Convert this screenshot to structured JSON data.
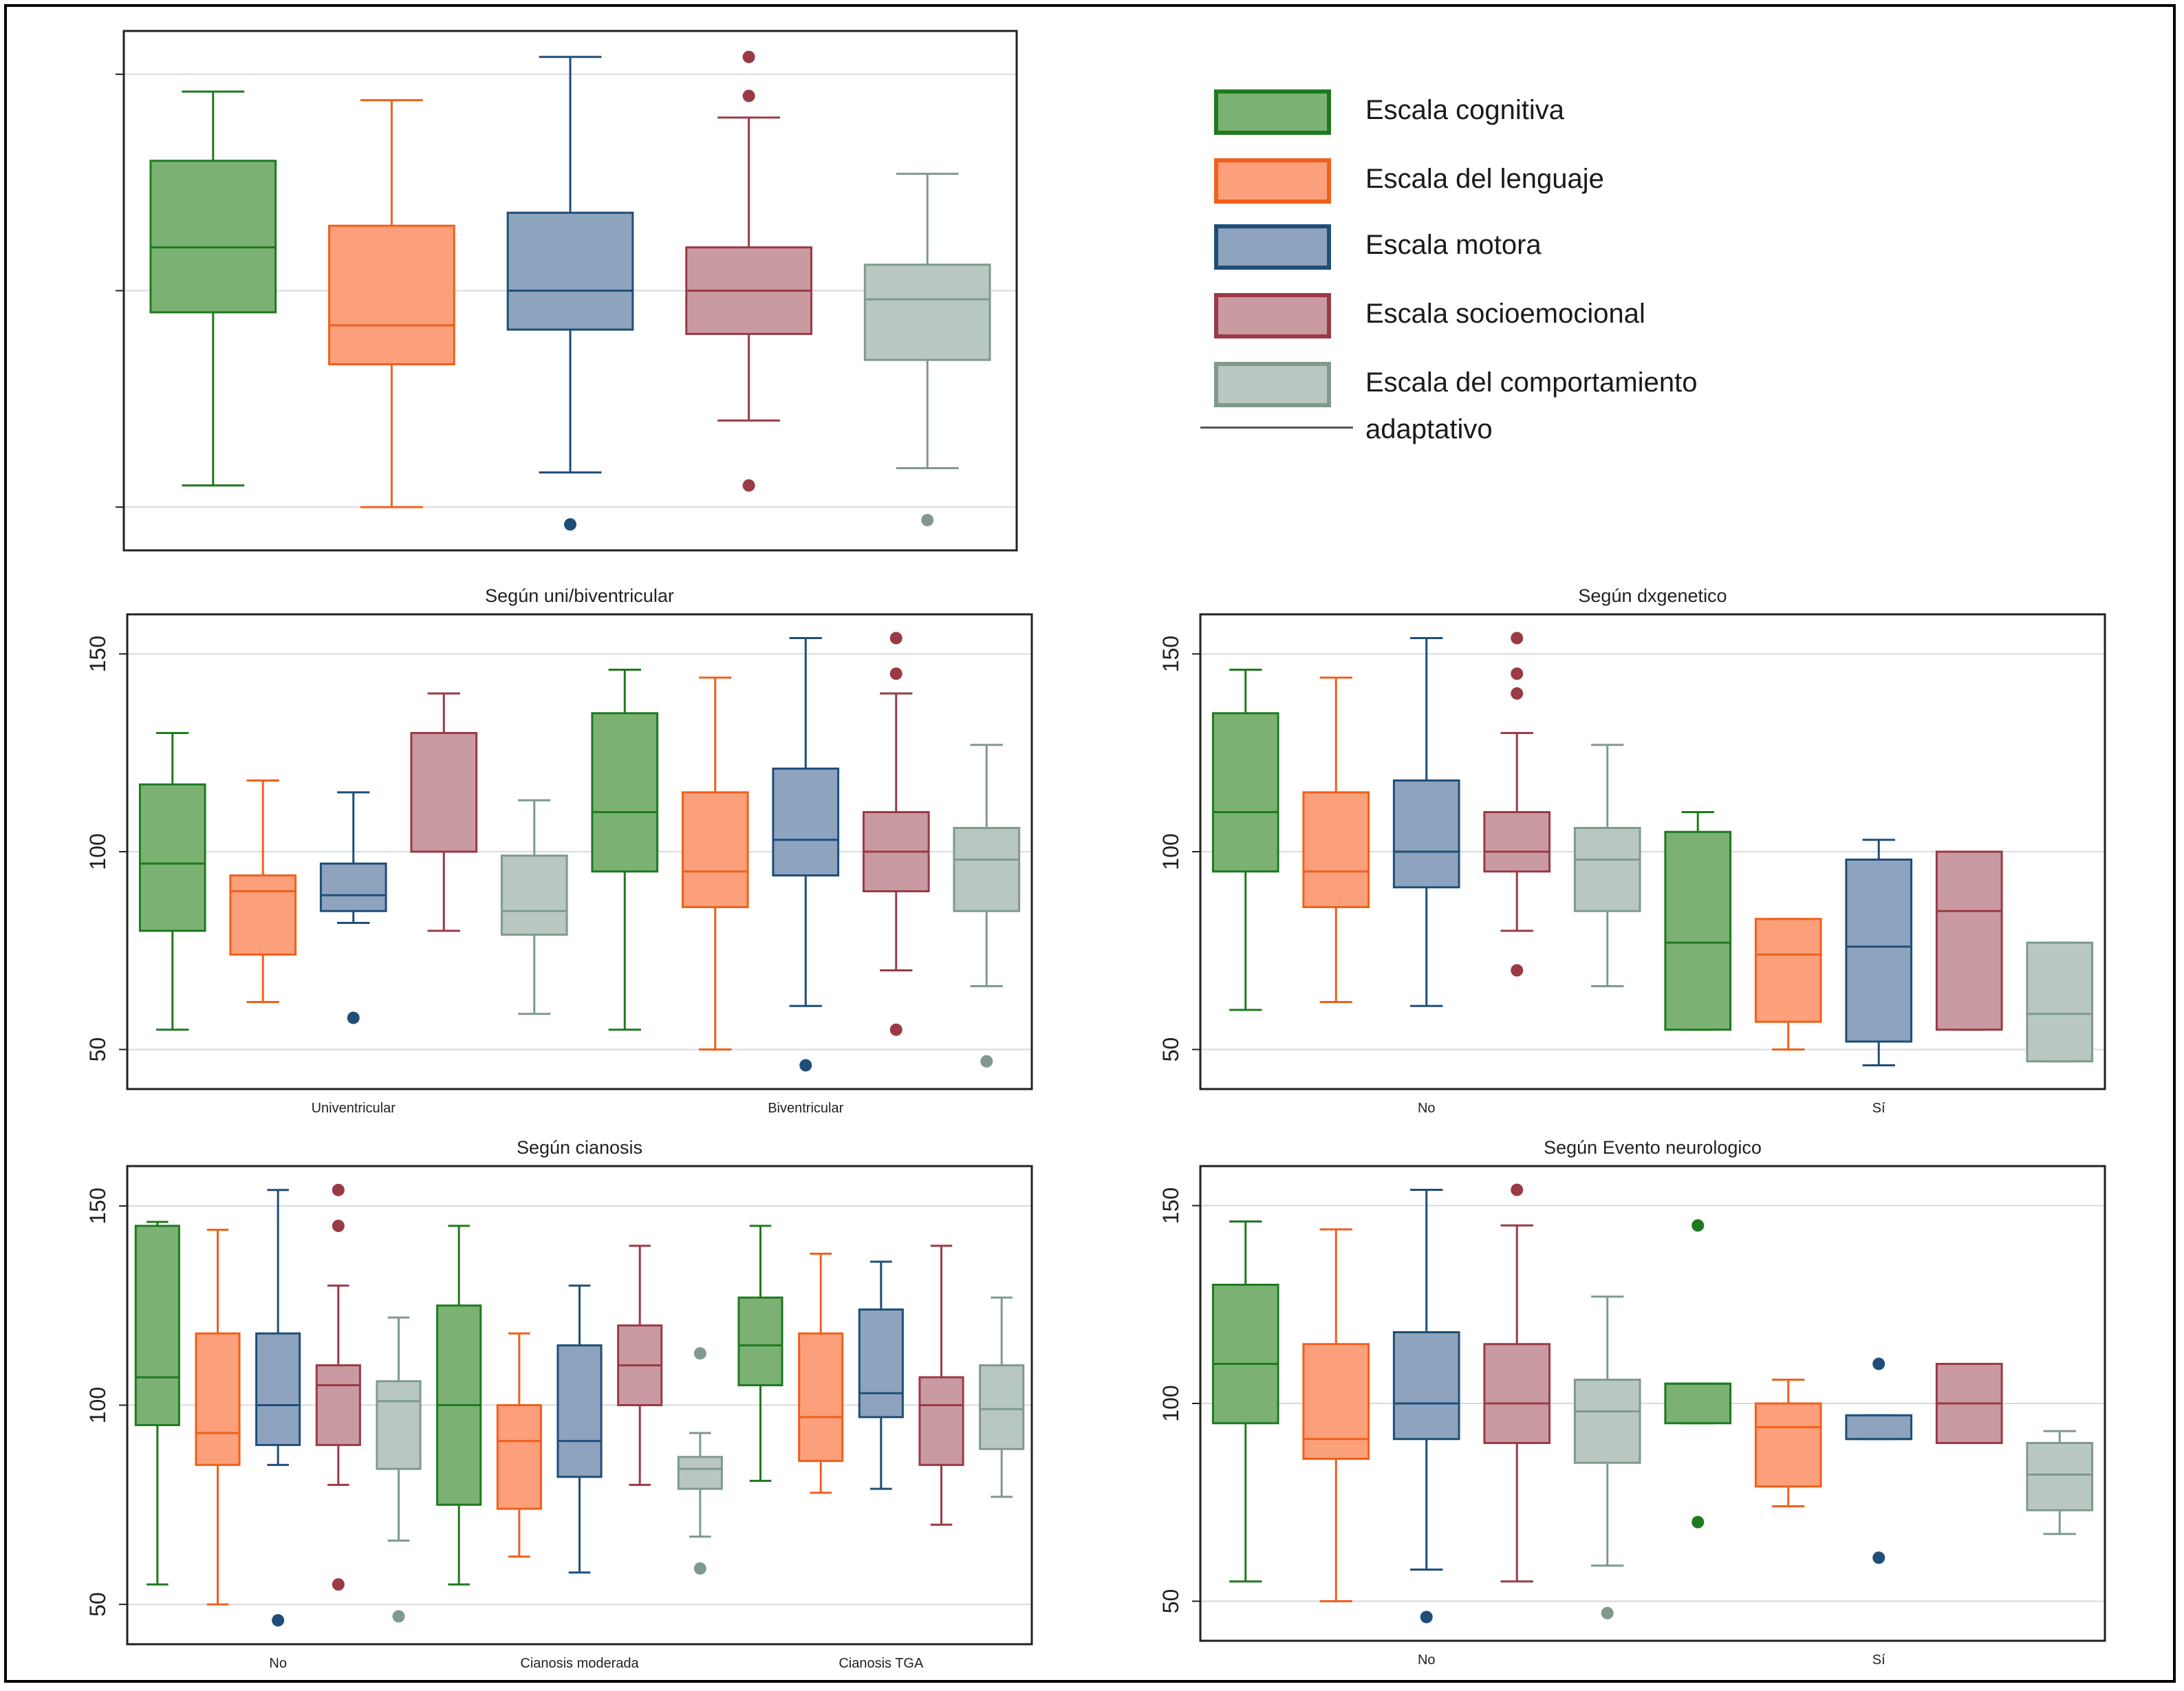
{
  "colors": {
    "cognitiva": {
      "fill": "#7bb274",
      "stroke": "#1f7a1f"
    },
    "lenguaje": {
      "fill": "#fba07a",
      "stroke": "#f0601c"
    },
    "motora": {
      "fill": "#8ea3bd",
      "stroke": "#1f4e79"
    },
    "socioemocional": {
      "fill": "#c99aa1",
      "stroke": "#9a3a46"
    },
    "comportamiento": {
      "fill": "#b8c8c0",
      "stroke": "#7f9a8c"
    }
  },
  "legend": {
    "items": [
      {
        "key": "cognitiva",
        "label": "Escala cognitiva"
      },
      {
        "key": "lenguaje",
        "label": "Escala del lenguaje"
      },
      {
        "key": "motora",
        "label": "Escala motora"
      },
      {
        "key": "socioemocional",
        "label": "Escala socioemocional"
      },
      {
        "key": "comportamiento",
        "label": "Escala del comportamiento"
      }
    ],
    "continuation": "adaptativo"
  },
  "chart_data": [
    {
      "id": "overall",
      "type": "boxplot",
      "title": "",
      "ylim": [
        40,
        160
      ],
      "yticks": [
        50,
        100,
        150
      ],
      "grid": true,
      "groups": [
        {
          "label": "",
          "boxes": [
            {
              "series": "cognitiva",
              "min": 55,
              "q1": 95,
              "median": 110,
              "q3": 130,
              "max": 146,
              "outliers": []
            },
            {
              "series": "lenguaje",
              "min": 50,
              "q1": 83,
              "median": 92,
              "q3": 115,
              "max": 144,
              "outliers": []
            },
            {
              "series": "motora",
              "min": 58,
              "q1": 91,
              "median": 100,
              "q3": 118,
              "max": 154,
              "outliers": [
                46
              ]
            },
            {
              "series": "socioemocional",
              "min": 70,
              "q1": 90,
              "median": 100,
              "q3": 110,
              "max": 140,
              "outliers": [
                55,
                145,
                154
              ]
            },
            {
              "series": "comportamiento",
              "min": 59,
              "q1": 84,
              "median": 98,
              "q3": 106,
              "max": 127,
              "outliers": [
                47
              ]
            }
          ]
        }
      ]
    },
    {
      "id": "uni-bi",
      "type": "boxplot",
      "title": "Según uni/biventricular",
      "ylim": [
        40,
        160
      ],
      "yticks": [
        50,
        100,
        150
      ],
      "grid": true,
      "groups": [
        {
          "label": "Univentricular",
          "boxes": [
            {
              "series": "cognitiva",
              "min": 55,
              "q1": 80,
              "median": 97,
              "q3": 117,
              "max": 130,
              "outliers": []
            },
            {
              "series": "lenguaje",
              "min": 62,
              "q1": 74,
              "median": 90,
              "q3": 94,
              "max": 118,
              "outliers": []
            },
            {
              "series": "motora",
              "min": 82,
              "q1": 85,
              "median": 89,
              "q3": 97,
              "max": 115,
              "outliers": [
                58
              ]
            },
            {
              "series": "socioemocional",
              "min": 80,
              "q1": 100,
              "median": 100,
              "q3": 130,
              "max": 140,
              "outliers": []
            },
            {
              "series": "comportamiento",
              "min": 59,
              "q1": 79,
              "median": 85,
              "q3": 99,
              "max": 113,
              "outliers": []
            }
          ]
        },
        {
          "label": "Biventricular",
          "boxes": [
            {
              "series": "cognitiva",
              "min": 55,
              "q1": 95,
              "median": 110,
              "q3": 135,
              "max": 146,
              "outliers": []
            },
            {
              "series": "lenguaje",
              "min": 50,
              "q1": 86,
              "median": 95,
              "q3": 115,
              "max": 144,
              "outliers": []
            },
            {
              "series": "motora",
              "min": 61,
              "q1": 94,
              "median": 103,
              "q3": 121,
              "max": 154,
              "outliers": [
                46
              ]
            },
            {
              "series": "socioemocional",
              "min": 70,
              "q1": 90,
              "median": 100,
              "q3": 110,
              "max": 140,
              "outliers": [
                55,
                145,
                154
              ]
            },
            {
              "series": "comportamiento",
              "min": 66,
              "q1": 85,
              "median": 98,
              "q3": 106,
              "max": 127,
              "outliers": [
                47
              ]
            }
          ]
        }
      ]
    },
    {
      "id": "dxgenetico",
      "type": "boxplot",
      "title": "Según dxgenetico",
      "ylim": [
        40,
        160
      ],
      "yticks": [
        50,
        100,
        150
      ],
      "grid": true,
      "groups": [
        {
          "label": "No",
          "boxes": [
            {
              "series": "cognitiva",
              "min": 60,
              "q1": 95,
              "median": 110,
              "q3": 135,
              "max": 146,
              "outliers": []
            },
            {
              "series": "lenguaje",
              "min": 62,
              "q1": 86,
              "median": 95,
              "q3": 115,
              "max": 144,
              "outliers": []
            },
            {
              "series": "motora",
              "min": 61,
              "q1": 91,
              "median": 100,
              "q3": 118,
              "max": 154,
              "outliers": []
            },
            {
              "series": "socioemocional",
              "min": 80,
              "q1": 95,
              "median": 100,
              "q3": 110,
              "max": 130,
              "outliers": [
                70,
                140,
                145,
                154
              ]
            },
            {
              "series": "comportamiento",
              "min": 66,
              "q1": 85,
              "median": 98,
              "q3": 106,
              "max": 127,
              "outliers": []
            }
          ]
        },
        {
          "label": "Sí",
          "boxes": [
            {
              "series": "cognitiva",
              "min": 55,
              "q1": 55,
              "median": 77,
              "q3": 105,
              "max": 110,
              "outliers": []
            },
            {
              "series": "lenguaje",
              "min": 50,
              "q1": 57,
              "median": 74,
              "q3": 83,
              "max": 83,
              "outliers": []
            },
            {
              "series": "motora",
              "min": 46,
              "q1": 52,
              "median": 76,
              "q3": 98,
              "max": 103,
              "outliers": []
            },
            {
              "series": "socioemocional",
              "min": 55,
              "q1": 55,
              "median": 85,
              "q3": 100,
              "max": 100,
              "outliers": []
            },
            {
              "series": "comportamiento",
              "min": 47,
              "q1": 47,
              "median": 59,
              "q3": 77,
              "max": 77,
              "outliers": []
            }
          ]
        }
      ]
    },
    {
      "id": "cianosis",
      "type": "boxplot",
      "title": "Según cianosis",
      "ylim": [
        40,
        160
      ],
      "yticks": [
        50,
        100,
        150
      ],
      "grid": true,
      "groups": [
        {
          "label": "No",
          "boxes": [
            {
              "series": "cognitiva",
              "min": 55,
              "q1": 95,
              "median": 107,
              "q3": 145,
              "max": 146,
              "outliers": []
            },
            {
              "series": "lenguaje",
              "min": 50,
              "q1": 85,
              "median": 93,
              "q3": 118,
              "max": 144,
              "outliers": []
            },
            {
              "series": "motora",
              "min": 85,
              "q1": 90,
              "median": 100,
              "q3": 118,
              "max": 154,
              "outliers": [
                46
              ]
            },
            {
              "series": "socioemocional",
              "min": 80,
              "q1": 90,
              "median": 105,
              "q3": 110,
              "max": 130,
              "outliers": [
                55,
                145,
                154
              ]
            },
            {
              "series": "comportamiento",
              "min": 66,
              "q1": 84,
              "median": 101,
              "q3": 106,
              "max": 122,
              "outliers": [
                47
              ]
            }
          ]
        },
        {
          "label": "Cianosis moderada",
          "boxes": [
            {
              "series": "cognitiva",
              "min": 55,
              "q1": 75,
              "median": 100,
              "q3": 125,
              "max": 145,
              "outliers": []
            },
            {
              "series": "lenguaje",
              "min": 62,
              "q1": 74,
              "median": 91,
              "q3": 100,
              "max": 118,
              "outliers": []
            },
            {
              "series": "motora",
              "min": 58,
              "q1": 82,
              "median": 91,
              "q3": 115,
              "max": 130,
              "outliers": []
            },
            {
              "series": "socioemocional",
              "min": 80,
              "q1": 100,
              "median": 110,
              "q3": 120,
              "max": 140,
              "outliers": []
            },
            {
              "series": "comportamiento",
              "min": 67,
              "q1": 79,
              "median": 84,
              "q3": 87,
              "max": 93,
              "outliers": [
                59,
                113
              ]
            }
          ]
        },
        {
          "label": "Cianosis TGA",
          "boxes": [
            {
              "series": "cognitiva",
              "min": 81,
              "q1": 105,
              "median": 115,
              "q3": 127,
              "max": 145,
              "outliers": []
            },
            {
              "series": "lenguaje",
              "min": 78,
              "q1": 86,
              "median": 97,
              "q3": 118,
              "max": 138,
              "outliers": []
            },
            {
              "series": "motora",
              "min": 79,
              "q1": 97,
              "median": 103,
              "q3": 124,
              "max": 136,
              "outliers": []
            },
            {
              "series": "socioemocional",
              "min": 70,
              "q1": 85,
              "median": 100,
              "q3": 107,
              "max": 140,
              "outliers": []
            },
            {
              "series": "comportamiento",
              "min": 77,
              "q1": 89,
              "median": 99,
              "q3": 110,
              "max": 127,
              "outliers": []
            }
          ]
        }
      ]
    },
    {
      "id": "evento-neurologico",
      "type": "boxplot",
      "title": "Según Evento neurologico",
      "ylim": [
        40,
        160
      ],
      "yticks": [
        50,
        100,
        150
      ],
      "grid": true,
      "groups": [
        {
          "label": "No",
          "boxes": [
            {
              "series": "cognitiva",
              "min": 55,
              "q1": 95,
              "median": 110,
              "q3": 130,
              "max": 146,
              "outliers": []
            },
            {
              "series": "lenguaje",
              "min": 50,
              "q1": 86,
              "median": 91,
              "q3": 115,
              "max": 144,
              "outliers": []
            },
            {
              "series": "motora",
              "min": 58,
              "q1": 91,
              "median": 100,
              "q3": 118,
              "max": 154,
              "outliers": [
                46
              ]
            },
            {
              "series": "socioemocional",
              "min": 55,
              "q1": 90,
              "median": 100,
              "q3": 115,
              "max": 145,
              "outliers": [
                154
              ]
            },
            {
              "series": "comportamiento",
              "min": 59,
              "q1": 85,
              "median": 98,
              "q3": 106,
              "max": 127,
              "outliers": [
                47
              ]
            }
          ]
        },
        {
          "label": "Sí",
          "boxes": [
            {
              "series": "cognitiva",
              "min": 95,
              "q1": 95,
              "median": 105,
              "q3": 105,
              "max": 105,
              "outliers": [
                70,
                145
              ]
            },
            {
              "series": "lenguaje",
              "min": 74,
              "q1": 79,
              "median": 94,
              "q3": 100,
              "max": 106,
              "outliers": []
            },
            {
              "series": "motora",
              "min": 91,
              "q1": 91,
              "median": 91,
              "q3": 97,
              "max": 97,
              "outliers": [
                61,
                110
              ]
            },
            {
              "series": "socioemocional",
              "min": 90,
              "q1": 90,
              "median": 100,
              "q3": 110,
              "max": 110,
              "outliers": []
            },
            {
              "series": "comportamiento",
              "min": 67,
              "q1": 73,
              "median": 82,
              "q3": 90,
              "max": 93,
              "outliers": []
            }
          ]
        }
      ]
    }
  ]
}
